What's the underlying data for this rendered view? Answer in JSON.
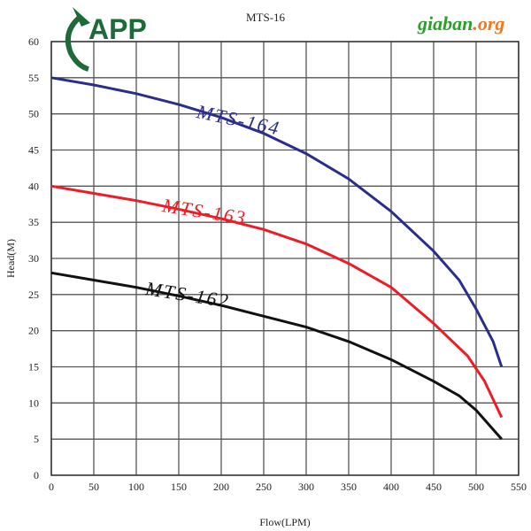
{
  "logo": {
    "text": "APP",
    "color": "#1e6b3a"
  },
  "watermark": {
    "text_main": "giaban",
    "text_suffix": ".org"
  },
  "chart_data": {
    "type": "line",
    "title": "MTS-16",
    "xlabel": "Flow(LPM)",
    "ylabel": "Head(M)",
    "xlim": [
      0,
      550
    ],
    "ylim": [
      0,
      60
    ],
    "xticks": [
      0,
      50,
      100,
      150,
      200,
      250,
      300,
      350,
      400,
      450,
      500,
      550
    ],
    "yticks": [
      0,
      5,
      10,
      15,
      20,
      25,
      30,
      35,
      40,
      45,
      50,
      55,
      60
    ],
    "grid": true,
    "series": [
      {
        "name": "MTS-164",
        "color": "#2b2e8c",
        "x": [
          0,
          50,
          100,
          150,
          200,
          250,
          300,
          350,
          400,
          450,
          480,
          500,
          520,
          530
        ],
        "y": [
          55,
          54,
          52.8,
          51.3,
          49.5,
          47.3,
          44.5,
          41,
          36.5,
          31,
          27,
          23,
          18.5,
          15
        ]
      },
      {
        "name": "MTS-163",
        "color": "#ee1c25",
        "x": [
          0,
          50,
          100,
          150,
          200,
          250,
          300,
          350,
          400,
          450,
          490,
          510,
          530
        ],
        "y": [
          40,
          39,
          38,
          36.8,
          35.5,
          34,
          32,
          29.3,
          26,
          21,
          16.5,
          13,
          8
        ]
      },
      {
        "name": "MTS-162",
        "color": "#111111",
        "x": [
          0,
          50,
          100,
          150,
          200,
          250,
          300,
          350,
          400,
          450,
          480,
          500,
          530
        ],
        "y": [
          28,
          27,
          26,
          24.8,
          23.5,
          22,
          20.5,
          18.5,
          16,
          13,
          11,
          9,
          5
        ]
      }
    ]
  }
}
